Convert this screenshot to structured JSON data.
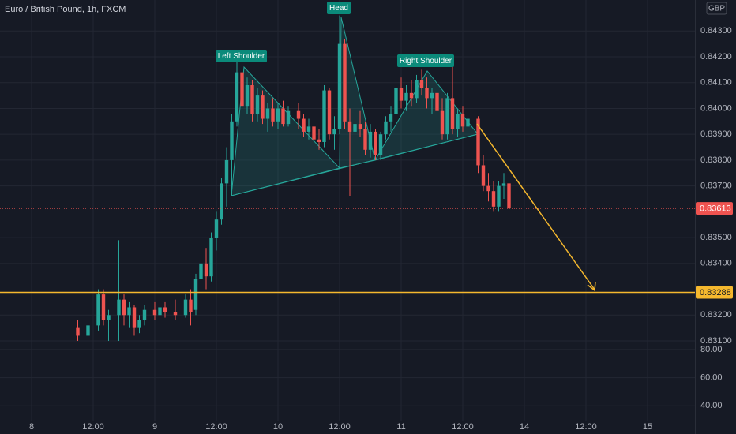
{
  "chart_data": {
    "type": "candlestick",
    "title": "Euro / British Pound, 1h, FXCM",
    "currency": "GBP",
    "annotations": [
      "Left Shoulder",
      "Head",
      "Right Shoulder"
    ],
    "last_price": 0.83613,
    "last_price_color": "#ef5350",
    "target_level": 0.83288,
    "target_color": "#f5b82e",
    "xlim": [
      -6.154,
      129.23
    ],
    "xticks": [
      {
        "value": 0,
        "label": "8"
      },
      {
        "value": 12,
        "label": "12:00"
      },
      {
        "value": 24,
        "label": "9"
      },
      {
        "value": 36,
        "label": "12:00"
      },
      {
        "value": 48,
        "label": "10"
      },
      {
        "value": 60,
        "label": "12:00"
      },
      {
        "value": 72,
        "label": "11"
      },
      {
        "value": 84,
        "label": "12:00"
      },
      {
        "value": 96,
        "label": "14"
      },
      {
        "value": 108,
        "label": "12:00"
      },
      {
        "value": 120,
        "label": "15"
      }
    ],
    "ylim": [
      0.831,
      0.8442
    ],
    "yticks": [
      {
        "value": 0.843,
        "label": "0.84300"
      },
      {
        "value": 0.842,
        "label": "0.84200"
      },
      {
        "value": 0.841,
        "label": "0.84100"
      },
      {
        "value": 0.84,
        "label": "0.84000"
      },
      {
        "value": 0.839,
        "label": "0.83900"
      },
      {
        "value": 0.838,
        "label": "0.83800"
      },
      {
        "value": 0.837,
        "label": "0.83700"
      },
      {
        "value": 0.835,
        "label": "0.83500"
      },
      {
        "value": 0.834,
        "label": "0.83400"
      },
      {
        "value": 0.832,
        "label": "0.83200"
      },
      {
        "value": 0.831,
        "label": "0.83100"
      }
    ],
    "grid": true,
    "up_color": "#26a69a",
    "down_color": "#ef5350",
    "series": [
      {
        "x": [
          9,
          11,
          13,
          14,
          15,
          17,
          18,
          19,
          20,
          21,
          22,
          24,
          25,
          26,
          28,
          30,
          31,
          32,
          33,
          34,
          35,
          36,
          37,
          38,
          39,
          40,
          41,
          42,
          43,
          44,
          45,
          46,
          47,
          48,
          49,
          50,
          52,
          53,
          54,
          55,
          56,
          57,
          58,
          59,
          60,
          61,
          62,
          63,
          64,
          65,
          66,
          67,
          68,
          69,
          70,
          71,
          72,
          73,
          74,
          75,
          76,
          77,
          78,
          79,
          80,
          81,
          82,
          83,
          84,
          85,
          87,
          88,
          89,
          90,
          91,
          92,
          93
        ],
        "open": [
          0.8315,
          0.8312,
          0.8316,
          0.8328,
          0.8318,
          0.832,
          0.8326,
          0.832,
          0.8323,
          0.8315,
          0.8318,
          0.8322,
          0.832,
          0.8323,
          0.8321,
          0.832,
          0.8326,
          0.8322,
          0.8334,
          0.834,
          0.8335,
          0.835,
          0.8357,
          0.8371,
          0.838,
          0.8395,
          0.8414,
          0.8401,
          0.8409,
          0.8398,
          0.8405,
          0.8396,
          0.84,
          0.8395,
          0.84,
          0.8394,
          0.8399,
          0.8396,
          0.8391,
          0.8393,
          0.8388,
          0.8387,
          0.8407,
          0.839,
          0.8392,
          0.8425,
          0.8395,
          0.8391,
          0.8394,
          0.8392,
          0.8384,
          0.8391,
          0.8382,
          0.839,
          0.8395,
          0.8398,
          0.8408,
          0.8403,
          0.8406,
          0.8404,
          0.8411,
          0.8408,
          0.8404,
          0.8406,
          0.8399,
          0.839,
          0.8404,
          0.8392,
          0.8398,
          0.8393,
          0.8396,
          0.8378,
          0.837,
          0.8368,
          0.8362,
          0.837,
          0.8371
        ],
        "high": [
          0.8318,
          0.8318,
          0.833,
          0.833,
          0.8322,
          0.8349,
          0.8328,
          0.8325,
          0.8324,
          0.832,
          0.8324,
          0.8325,
          0.8324,
          0.8325,
          0.8326,
          0.8328,
          0.833,
          0.8336,
          0.8345,
          0.8346,
          0.8352,
          0.836,
          0.8373,
          0.8385,
          0.8398,
          0.8418,
          0.8417,
          0.8412,
          0.8411,
          0.8408,
          0.8407,
          0.8402,
          0.8404,
          0.8402,
          0.8403,
          0.8401,
          0.8402,
          0.8398,
          0.8396,
          0.8395,
          0.8392,
          0.8409,
          0.8408,
          0.8397,
          0.8436,
          0.8427,
          0.84,
          0.8397,
          0.8399,
          0.8395,
          0.8394,
          0.8392,
          0.8391,
          0.8397,
          0.8401,
          0.841,
          0.8412,
          0.8409,
          0.8411,
          0.8413,
          0.8415,
          0.8412,
          0.8408,
          0.841,
          0.8404,
          0.8406,
          0.8419,
          0.84,
          0.8401,
          0.8398,
          0.8397,
          0.8382,
          0.8375,
          0.8372,
          0.8372,
          0.8375,
          0.8372
        ],
        "low": [
          0.831,
          0.831,
          0.8314,
          0.8316,
          0.831,
          0.831,
          0.8316,
          0.8315,
          0.8312,
          0.8313,
          0.8316,
          0.8318,
          0.8318,
          0.8319,
          0.8318,
          0.8319,
          0.8316,
          0.832,
          0.8328,
          0.833,
          0.8333,
          0.8345,
          0.8355,
          0.8362,
          0.8366,
          0.8393,
          0.8398,
          0.8398,
          0.8395,
          0.8395,
          0.8394,
          0.8391,
          0.8393,
          0.8392,
          0.8393,
          0.8393,
          0.8392,
          0.8389,
          0.8388,
          0.8386,
          0.8384,
          0.8385,
          0.8388,
          0.8384,
          0.839,
          0.8392,
          0.8366,
          0.8386,
          0.8389,
          0.8382,
          0.8381,
          0.838,
          0.838,
          0.8388,
          0.8391,
          0.8396,
          0.84,
          0.8399,
          0.8401,
          0.8402,
          0.8405,
          0.84,
          0.8398,
          0.8396,
          0.8388,
          0.8388,
          0.839,
          0.8389,
          0.8391,
          0.839,
          0.8375,
          0.8368,
          0.8364,
          0.836,
          0.836,
          0.8365,
          0.836
        ],
        "close": [
          0.8312,
          0.8316,
          0.8328,
          0.8318,
          0.832,
          0.8326,
          0.832,
          0.8323,
          0.8315,
          0.8318,
          0.8322,
          0.832,
          0.8323,
          0.8321,
          0.832,
          0.8326,
          0.8321,
          0.8334,
          0.834,
          0.8335,
          0.835,
          0.8357,
          0.8371,
          0.838,
          0.8395,
          0.8414,
          0.8401,
          0.8409,
          0.8398,
          0.8405,
          0.8396,
          0.84,
          0.8395,
          0.84,
          0.8394,
          0.8399,
          0.8396,
          0.8391,
          0.8393,
          0.8388,
          0.8387,
          0.8407,
          0.839,
          0.8392,
          0.8425,
          0.8395,
          0.8391,
          0.8394,
          0.8392,
          0.8384,
          0.8391,
          0.8382,
          0.839,
          0.8395,
          0.8398,
          0.8408,
          0.8403,
          0.8406,
          0.8404,
          0.8411,
          0.8408,
          0.8404,
          0.8406,
          0.8399,
          0.839,
          0.8404,
          0.8392,
          0.8398,
          0.8393,
          0.8396,
          0.8378,
          0.837,
          0.8368,
          0.8362,
          0.837,
          0.8371,
          0.83613
        ]
      }
    ],
    "lower_pane": {
      "ylim": [
        29.5,
        85
      ],
      "yticks": [
        {
          "value": 80,
          "label": "80.00"
        },
        {
          "value": 60,
          "label": "60.00"
        },
        {
          "value": 40,
          "label": "40.00"
        }
      ]
    }
  }
}
